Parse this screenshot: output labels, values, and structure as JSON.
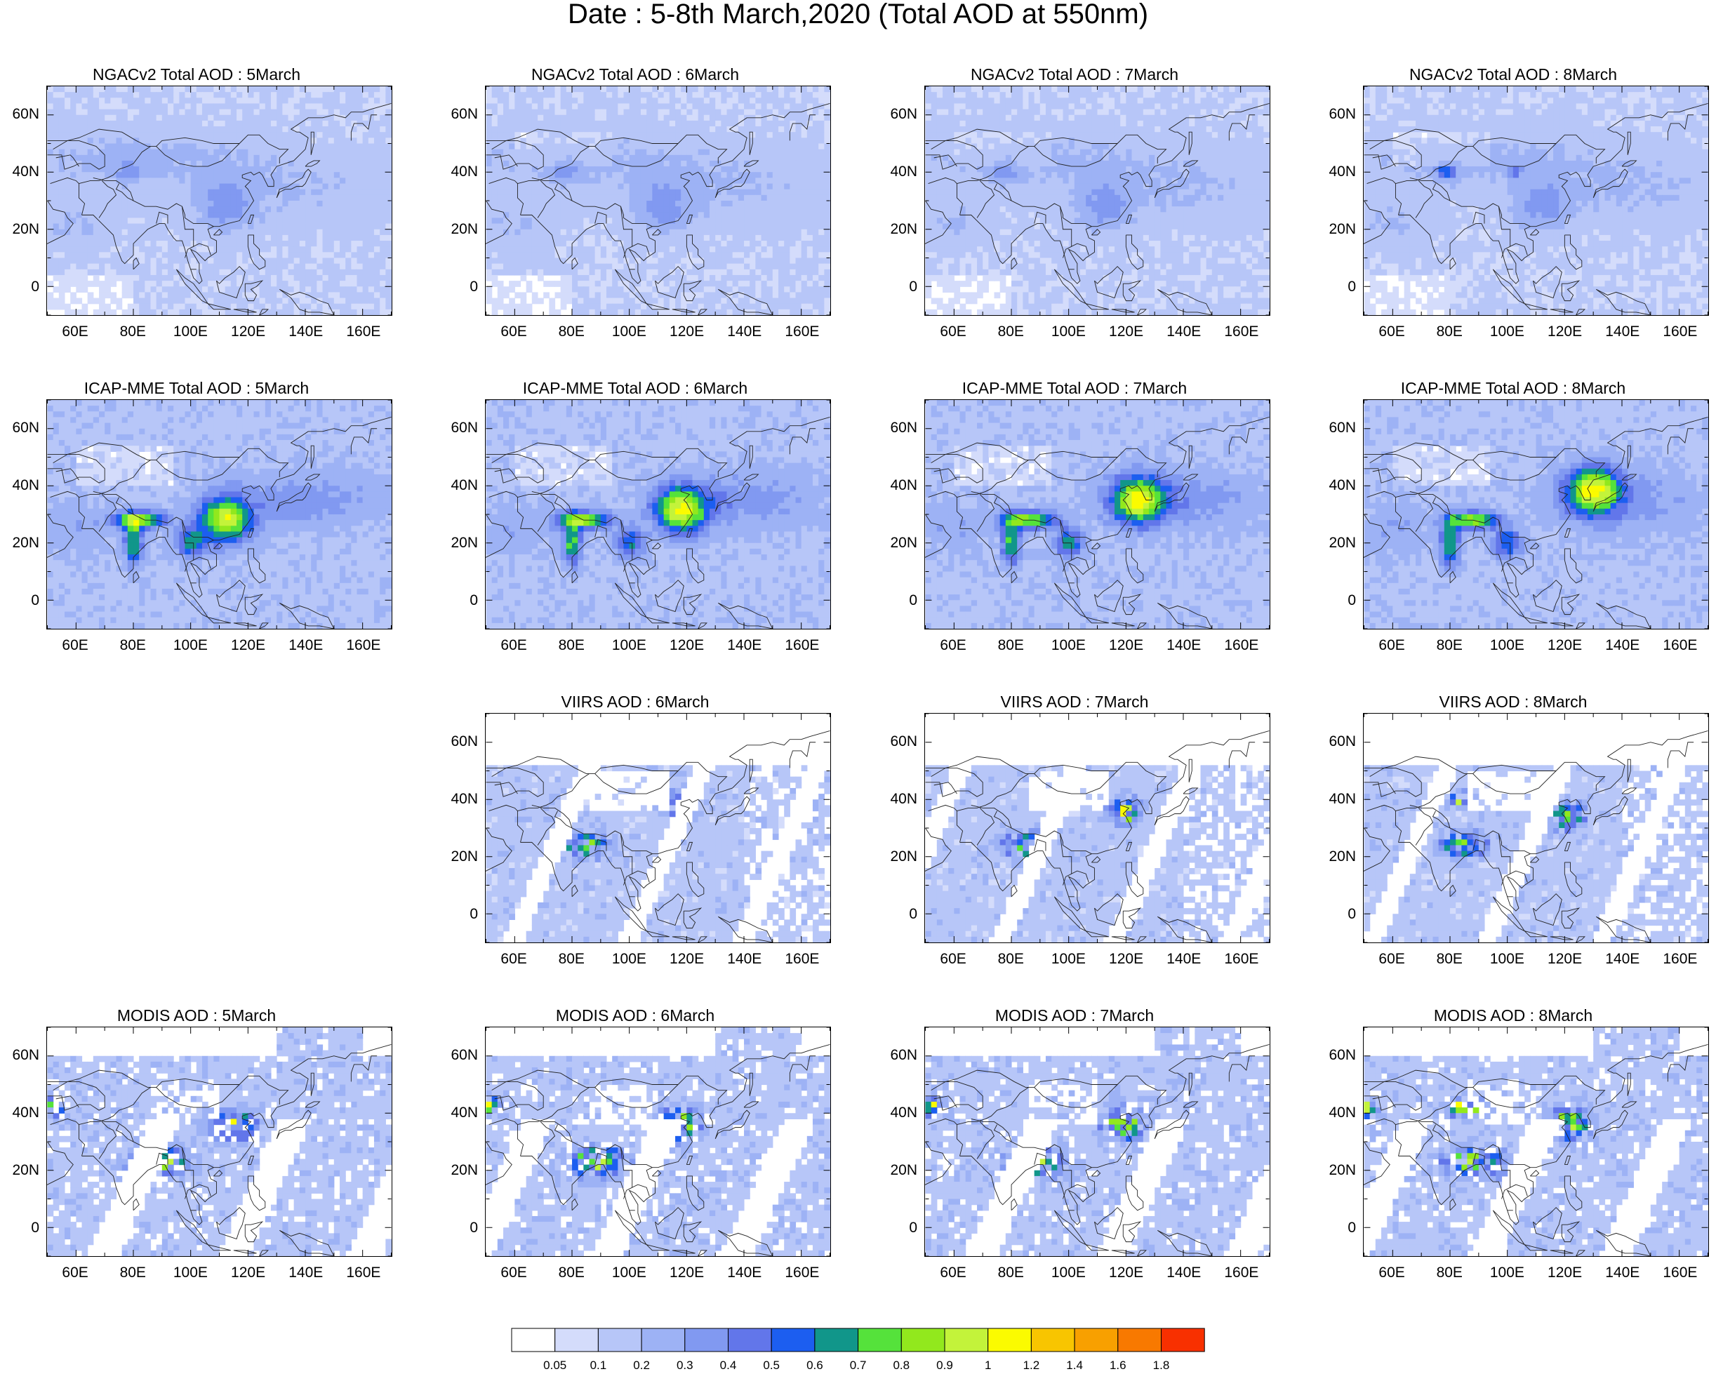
{
  "title": "Date : 5-8th March,2020 (Total AOD at 550nm)",
  "x_ticks": [
    "60E",
    "80E",
    "100E",
    "120E",
    "140E",
    "160E"
  ],
  "y_ticks": [
    "60N",
    "40N",
    "20N",
    "0"
  ],
  "panels": [
    {
      "title": "NGACv2 Total AOD : 5March",
      "product": "NGACv2",
      "day": 5
    },
    {
      "title": "NGACv2 Total AOD : 6March",
      "product": "NGACv2",
      "day": 6
    },
    {
      "title": "NGACv2 Total AOD : 7March",
      "product": "NGACv2",
      "day": 7
    },
    {
      "title": "NGACv2 Total AOD : 8March",
      "product": "NGACv2",
      "day": 8
    },
    {
      "title": "ICAP-MME Total AOD : 5March",
      "product": "ICAP-MME",
      "day": 5
    },
    {
      "title": "ICAP-MME Total AOD : 6March",
      "product": "ICAP-MME",
      "day": 6
    },
    {
      "title": "ICAP-MME Total AOD : 7March",
      "product": "ICAP-MME",
      "day": 7
    },
    {
      "title": "ICAP-MME Total AOD : 8March",
      "product": "ICAP-MME",
      "day": 8
    },
    {
      "title": "VIIRS AOD : 6March",
      "product": "VIIRS",
      "day": 6
    },
    {
      "title": "VIIRS AOD : 7March",
      "product": "VIIRS",
      "day": 7
    },
    {
      "title": "VIIRS AOD : 8March",
      "product": "VIIRS",
      "day": 8
    },
    {
      "title": "MODIS AOD : 5March",
      "product": "MODIS",
      "day": 5
    },
    {
      "title": "MODIS AOD : 6March",
      "product": "MODIS",
      "day": 6
    },
    {
      "title": "MODIS AOD : 7March",
      "product": "MODIS",
      "day": 7
    },
    {
      "title": "MODIS AOD : 8March",
      "product": "MODIS",
      "day": 8
    }
  ],
  "colorbar": {
    "labels": [
      "0.05",
      "0.1",
      "0.2",
      "0.3",
      "0.4",
      "0.5",
      "0.6",
      "0.7",
      "0.8",
      "0.9",
      "1",
      "1.2",
      "1.4",
      "1.6",
      "1.8"
    ],
    "colors": [
      "#ffffff",
      "#d4dcfb",
      "#b7c6f8",
      "#9db2f5",
      "#8199f1",
      "#6276ea",
      "#1c5ef0",
      "#11968a",
      "#55e23b",
      "#92e81d",
      "#c3f33a",
      "#fbfb00",
      "#f8c500",
      "#f8a000",
      "#f87900",
      "#f83000"
    ]
  }
}
